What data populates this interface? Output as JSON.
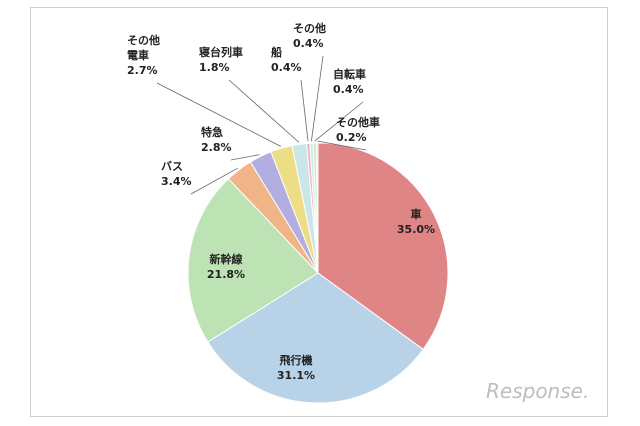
{
  "chart_data": {
    "type": "pie",
    "categories": [
      "車",
      "飛行機",
      "新幹線",
      "バス",
      "特急",
      "その他電車",
      "寝台列車",
      "船",
      "その他",
      "自転車",
      "その他車"
    ],
    "values": [
      35.0,
      31.1,
      21.8,
      3.4,
      2.8,
      2.7,
      1.8,
      0.4,
      0.4,
      0.4,
      0.2
    ],
    "value_labels": [
      "35.0%",
      "31.1%",
      "21.8%",
      "3.4%",
      "2.8%",
      "2.7%",
      "1.8%",
      "0.4%",
      "0.4%",
      "0.4%",
      "0.2%"
    ],
    "colors": [
      "#e08585",
      "#b8d3e8",
      "#bde3b4",
      "#f1b487",
      "#b3aee2",
      "#eddd86",
      "#c9e6e9",
      "#f4b0c2",
      "#c6ecf0",
      "#d4ecb4",
      "#eed9c4"
    ],
    "title": "",
    "legend": "none"
  },
  "watermark": "Response."
}
